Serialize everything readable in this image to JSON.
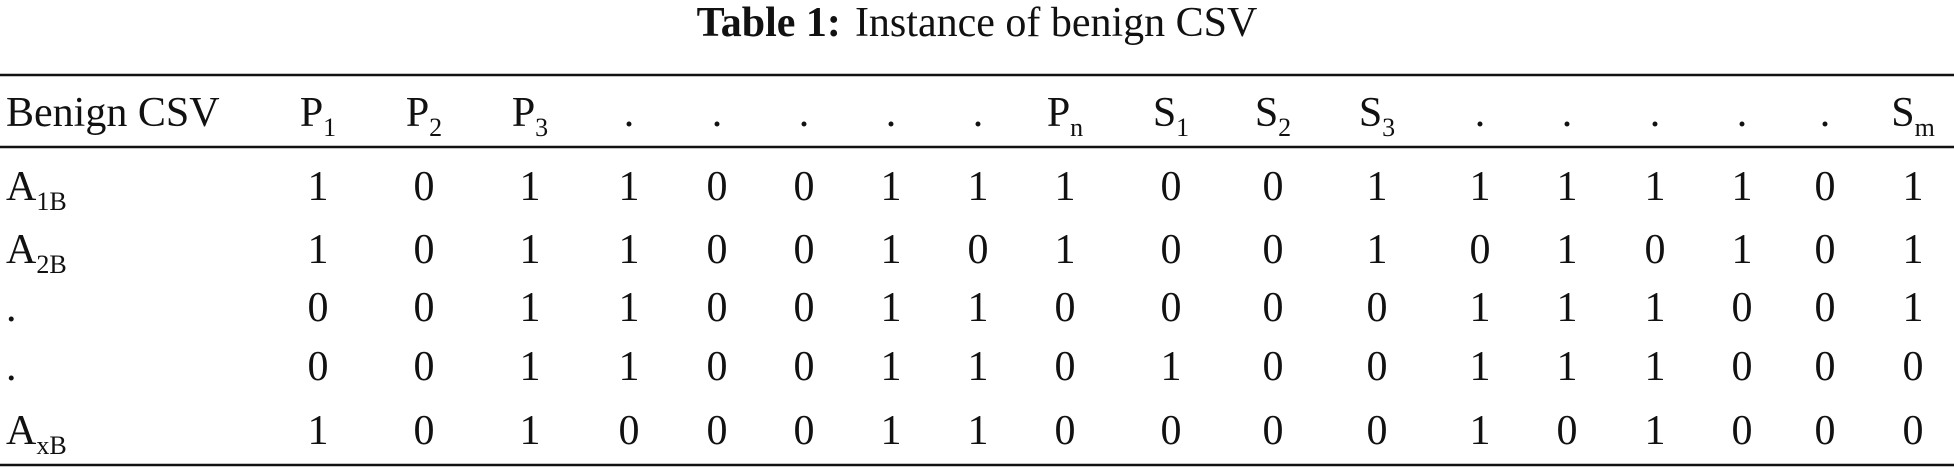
{
  "caption": {
    "label": "Table 1:",
    "text": "Instance of benign CSV"
  },
  "table": {
    "header": [
      "Benign CSV",
      {
        "base": "P",
        "sub": "1"
      },
      {
        "base": "P",
        "sub": "2"
      },
      {
        "base": "P",
        "sub": "3"
      },
      ".",
      ".",
      ".",
      ".",
      ".",
      {
        "base": "P",
        "sub": "n"
      },
      {
        "base": "S",
        "sub": "1"
      },
      {
        "base": "S",
        "sub": "2"
      },
      {
        "base": "S",
        "sub": "3"
      },
      ".",
      ".",
      ".",
      ".",
      ".",
      {
        "base": "S",
        "sub": "m"
      }
    ],
    "rows": [
      [
        {
          "base": "A",
          "sub": "1B"
        },
        1,
        0,
        1,
        1,
        0,
        0,
        1,
        1,
        1,
        0,
        0,
        1,
        1,
        1,
        1,
        1,
        0,
        1
      ],
      [
        {
          "base": "A",
          "sub": "2B"
        },
        1,
        0,
        1,
        1,
        0,
        0,
        1,
        0,
        1,
        0,
        0,
        1,
        0,
        1,
        0,
        1,
        0,
        1
      ],
      [
        ".",
        0,
        0,
        1,
        1,
        0,
        0,
        1,
        1,
        0,
        0,
        0,
        0,
        1,
        1,
        1,
        0,
        0,
        1
      ],
      [
        ".",
        0,
        0,
        1,
        1,
        0,
        0,
        1,
        1,
        0,
        1,
        0,
        0,
        1,
        1,
        1,
        0,
        0,
        0
      ],
      [
        {
          "base": "A",
          "sub": "xB"
        },
        1,
        0,
        1,
        0,
        0,
        0,
        1,
        1,
        0,
        0,
        0,
        0,
        1,
        0,
        1,
        0,
        0,
        0
      ]
    ]
  }
}
